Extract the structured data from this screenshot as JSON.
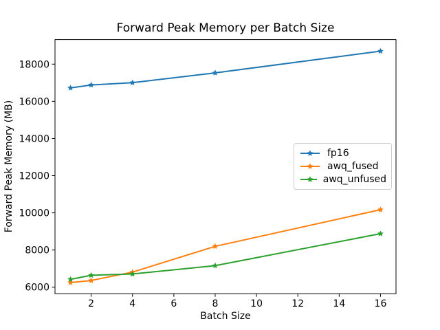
{
  "figure": {
    "background": "#ffffff"
  },
  "chart_data": {
    "type": "line",
    "title": "Forward Peak Memory per Batch Size",
    "xlabel": "Batch Size",
    "ylabel": "Forward Peak Memory (MB)",
    "x": [
      1,
      2,
      4,
      8,
      16
    ],
    "series": [
      {
        "name": "fp16",
        "color": "#1f77b4",
        "marker": "star",
        "values": [
          16720,
          16880,
          17000,
          17530,
          18700
        ]
      },
      {
        "name": "awq_fused",
        "color": "#ff7f0e",
        "marker": "star",
        "values": [
          6250,
          6360,
          6810,
          8200,
          10170
        ]
      },
      {
        "name": "awq_unfused",
        "color": "#2ca02c",
        "marker": "star",
        "values": [
          6420,
          6640,
          6710,
          7160,
          8880
        ]
      }
    ],
    "x_ticks": [
      2,
      4,
      6,
      8,
      10,
      12,
      14,
      16
    ],
    "y_ticks": [
      6000,
      8000,
      10000,
      12000,
      14000,
      16000,
      18000
    ],
    "xlim": [
      0.25,
      16.75
    ],
    "ylim": [
      5650,
      19320
    ],
    "grid": false,
    "legend_position": "center right",
    "axis_color": "#000000",
    "text_color": "#000000"
  }
}
